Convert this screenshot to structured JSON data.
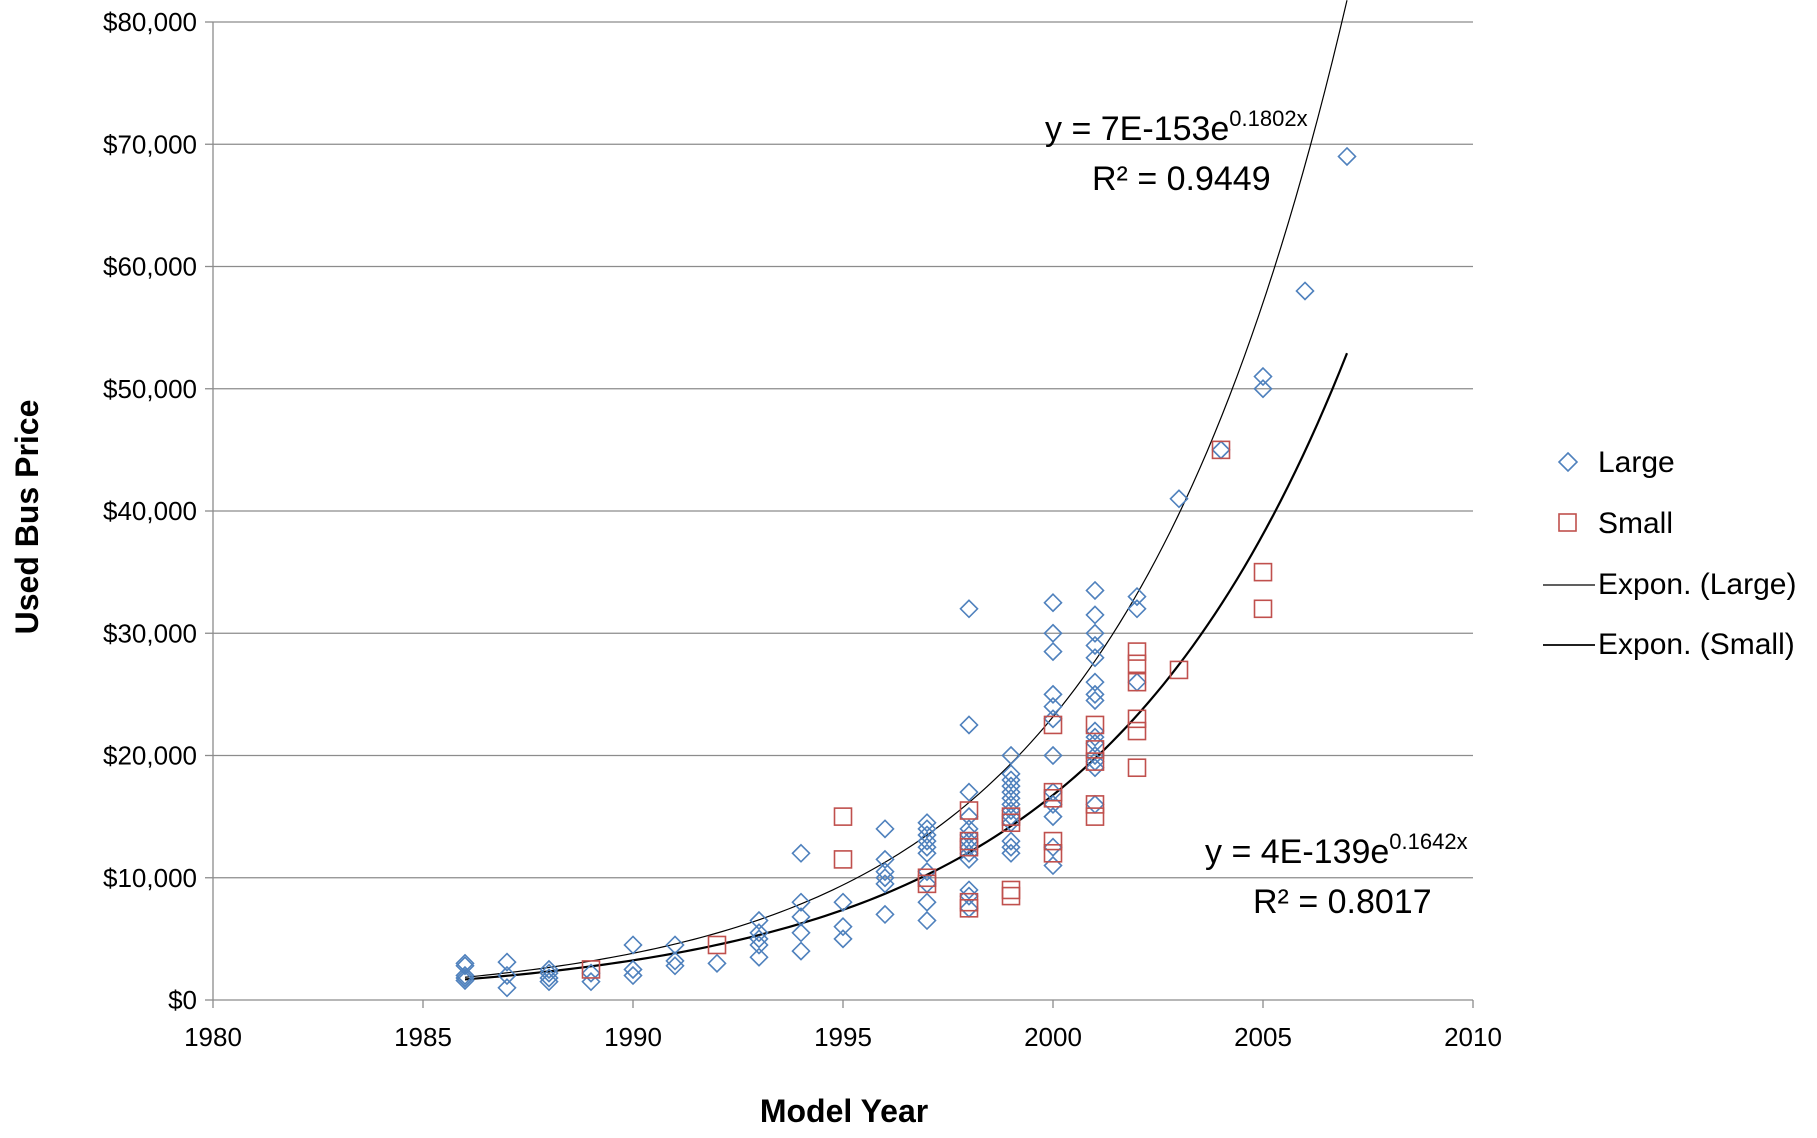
{
  "chart_data": {
    "type": "scatter",
    "title": "",
    "xlabel": "Model Year",
    "ylabel": "Used Bus Price",
    "xlim": [
      1980,
      2010
    ],
    "ylim": [
      0,
      80000
    ],
    "x_ticks": [
      "1980",
      "1985",
      "1990",
      "1995",
      "2000",
      "2005",
      "2010"
    ],
    "y_ticks": [
      "$0",
      "$10,000",
      "$20,000",
      "$30,000",
      "$40,000",
      "$50,000",
      "$60,000",
      "$70,000",
      "$80,000"
    ],
    "grid": "horizontal",
    "legend_position": "right",
    "series": [
      {
        "name": "Large",
        "marker": "diamond",
        "color": "#4F81BD",
        "points": [
          [
            1986,
            3000
          ],
          [
            1986,
            2800
          ],
          [
            1986,
            2000
          ],
          [
            1986,
            1800
          ],
          [
            1986,
            1600
          ],
          [
            1987,
            3100
          ],
          [
            1987,
            2000
          ],
          [
            1987,
            1000
          ],
          [
            1988,
            2500
          ],
          [
            1988,
            2200
          ],
          [
            1988,
            1800
          ],
          [
            1988,
            1500
          ],
          [
            1989,
            2200
          ],
          [
            1989,
            1500
          ],
          [
            1990,
            4500
          ],
          [
            1990,
            2500
          ],
          [
            1990,
            2000
          ],
          [
            1991,
            4500
          ],
          [
            1991,
            3200
          ],
          [
            1991,
            2800
          ],
          [
            1992,
            3000
          ],
          [
            1993,
            6500
          ],
          [
            1993,
            5500
          ],
          [
            1993,
            5000
          ],
          [
            1993,
            4500
          ],
          [
            1993,
            3500
          ],
          [
            1994,
            12000
          ],
          [
            1994,
            8000
          ],
          [
            1994,
            6800
          ],
          [
            1994,
            5500
          ],
          [
            1994,
            4000
          ],
          [
            1995,
            8000
          ],
          [
            1995,
            6000
          ],
          [
            1995,
            5000
          ],
          [
            1996,
            14000
          ],
          [
            1996,
            11500
          ],
          [
            1996,
            10500
          ],
          [
            1996,
            10000
          ],
          [
            1996,
            9500
          ],
          [
            1996,
            7000
          ],
          [
            1997,
            14500
          ],
          [
            1997,
            14000
          ],
          [
            1997,
            13500
          ],
          [
            1997,
            13000
          ],
          [
            1997,
            12500
          ],
          [
            1997,
            12000
          ],
          [
            1997,
            10500
          ],
          [
            1997,
            9500
          ],
          [
            1997,
            8000
          ],
          [
            1997,
            6500
          ],
          [
            1998,
            32000
          ],
          [
            1998,
            22500
          ],
          [
            1998,
            17000
          ],
          [
            1998,
            15000
          ],
          [
            1998,
            14000
          ],
          [
            1998,
            13500
          ],
          [
            1998,
            13000
          ],
          [
            1998,
            12500
          ],
          [
            1998,
            12000
          ],
          [
            1998,
            11500
          ],
          [
            1998,
            9000
          ],
          [
            1998,
            8500
          ],
          [
            1998,
            7500
          ],
          [
            1999,
            20000
          ],
          [
            1999,
            18500
          ],
          [
            1999,
            18000
          ],
          [
            1999,
            17500
          ],
          [
            1999,
            17000
          ],
          [
            1999,
            16500
          ],
          [
            1999,
            16000
          ],
          [
            1999,
            15500
          ],
          [
            1999,
            15000
          ],
          [
            1999,
            14500
          ],
          [
            1999,
            13000
          ],
          [
            1999,
            12500
          ],
          [
            1999,
            12000
          ],
          [
            2000,
            32500
          ],
          [
            2000,
            30000
          ],
          [
            2000,
            28500
          ],
          [
            2000,
            25000
          ],
          [
            2000,
            24000
          ],
          [
            2000,
            23000
          ],
          [
            2000,
            20000
          ],
          [
            2000,
            17000
          ],
          [
            2000,
            16000
          ],
          [
            2000,
            15000
          ],
          [
            2000,
            12500
          ],
          [
            2000,
            11000
          ],
          [
            2001,
            33500
          ],
          [
            2001,
            31500
          ],
          [
            2001,
            30000
          ],
          [
            2001,
            29000
          ],
          [
            2001,
            28000
          ],
          [
            2001,
            26000
          ],
          [
            2001,
            25000
          ],
          [
            2001,
            24500
          ],
          [
            2001,
            22000
          ],
          [
            2001,
            21500
          ],
          [
            2001,
            21000
          ],
          [
            2001,
            20000
          ],
          [
            2001,
            19500
          ],
          [
            2001,
            19000
          ],
          [
            2001,
            16000
          ],
          [
            2002,
            33000
          ],
          [
            2002,
            32000
          ],
          [
            2002,
            26000
          ],
          [
            2003,
            41000
          ],
          [
            2004,
            45000
          ],
          [
            2005,
            51000
          ],
          [
            2005,
            50000
          ],
          [
            2006,
            58000
          ],
          [
            2007,
            69000
          ]
        ]
      },
      {
        "name": "Small",
        "marker": "square",
        "color": "#C0504D",
        "points": [
          [
            1989,
            2500
          ],
          [
            1992,
            4500
          ],
          [
            1995,
            15000
          ],
          [
            1995,
            11500
          ],
          [
            1997,
            10000
          ],
          [
            1997,
            9500
          ],
          [
            1998,
            15500
          ],
          [
            1998,
            13000
          ],
          [
            1998,
            12500
          ],
          [
            1998,
            8000
          ],
          [
            1998,
            7500
          ],
          [
            1999,
            15000
          ],
          [
            1999,
            14500
          ],
          [
            1999,
            9000
          ],
          [
            1999,
            8500
          ],
          [
            2000,
            22500
          ],
          [
            2000,
            17000
          ],
          [
            2000,
            16500
          ],
          [
            2000,
            13000
          ],
          [
            2000,
            12000
          ],
          [
            2001,
            22500
          ],
          [
            2001,
            20500
          ],
          [
            2001,
            19500
          ],
          [
            2001,
            16000
          ],
          [
            2001,
            15000
          ],
          [
            2002,
            28500
          ],
          [
            2002,
            27500
          ],
          [
            2002,
            26000
          ],
          [
            2002,
            23000
          ],
          [
            2002,
            22000
          ],
          [
            2002,
            19000
          ],
          [
            2003,
            27000
          ],
          [
            2004,
            45000
          ],
          [
            2005,
            35000
          ],
          [
            2005,
            32000
          ]
        ]
      },
      {
        "name": "Expon. (Large)",
        "type": "trendline",
        "color": "#000000",
        "coef_a": 7e-153,
        "rate": 0.1802,
        "x_range": [
          1986,
          2007
        ],
        "equation": "y = 7E-153e",
        "exponent": "0.1802x",
        "r2": "R² = 0.9449"
      },
      {
        "name": "Expon. (Small)",
        "type": "trendline",
        "color": "#000000",
        "coef_a": 4e-139,
        "rate": 0.1642,
        "x_range": [
          1986,
          2007
        ],
        "equation": "y = 4E-139e",
        "exponent": "0.1642x",
        "r2": "R² = 0.8017"
      }
    ]
  }
}
